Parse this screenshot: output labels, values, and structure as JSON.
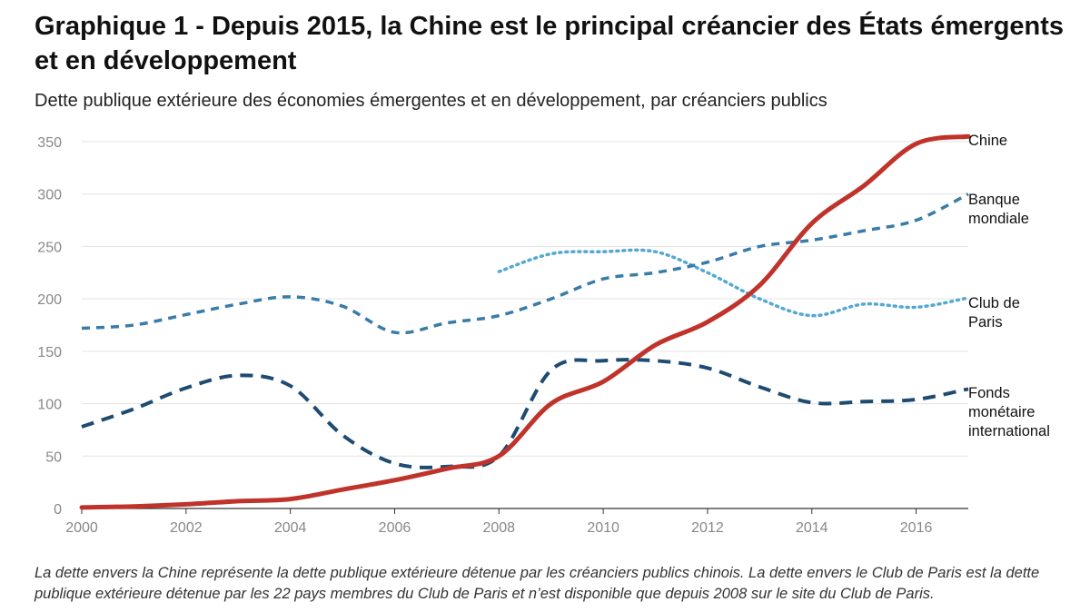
{
  "title": "Graphique 1 - Depuis 2015, la Chine est le principal créancier des États émergents et en développement",
  "subtitle": "Dette publique extérieure des économies émergentes et en développement, par créanciers publics",
  "note": "La dette envers la Chine représente la dette publique extérieure détenue par les créanciers publics chinois. La dette envers le Club de Paris est la dette publique extérieure détenue par les 22 pays membres du Club de Paris et n’est disponible que depuis 2008 sur le site du Club de Paris.",
  "chart_data": {
    "type": "line",
    "title": "Graphique 1 - Depuis 2015, la Chine est le principal créancier des États émergents et en développement",
    "subtitle": "Dette publique extérieure des économies émergentes et en développement, par créanciers publics",
    "xlabel": "",
    "ylabel": "",
    "xlim": [
      2000,
      2017
    ],
    "ylim": [
      0,
      350
    ],
    "x_ticks": [
      2000,
      2002,
      2004,
      2006,
      2008,
      2010,
      2012,
      2014,
      2016
    ],
    "y_ticks": [
      0,
      50,
      100,
      150,
      200,
      250,
      300,
      350
    ],
    "grid": "horizontal",
    "legend": "inline-right",
    "series": [
      {
        "name": "Chine",
        "label_lines": [
          "Chine"
        ],
        "color": "#c0332b",
        "style": "solid",
        "x": [
          2000,
          2001,
          2002,
          2003,
          2004,
          2005,
          2006,
          2007,
          2008,
          2009,
          2010,
          2011,
          2012,
          2013,
          2014,
          2015,
          2016,
          2017
        ],
        "values": [
          1,
          2,
          4,
          7,
          9,
          18,
          27,
          38,
          50,
          100,
          121,
          156,
          178,
          213,
          272,
          308,
          348,
          355
        ]
      },
      {
        "name": "Banque mondiale",
        "label_lines": [
          "Banque",
          "mondiale"
        ],
        "color": "#3a7ca8",
        "style": "dashed",
        "x": [
          2000,
          2001,
          2002,
          2003,
          2004,
          2005,
          2006,
          2007,
          2008,
          2009,
          2010,
          2011,
          2012,
          2013,
          2014,
          2015,
          2016,
          2017
        ],
        "values": [
          172,
          175,
          185,
          195,
          202,
          193,
          168,
          177,
          184,
          200,
          219,
          225,
          235,
          250,
          256,
          265,
          275,
          300
        ]
      },
      {
        "name": "Club de Paris",
        "label_lines": [
          "Club de",
          "Paris"
        ],
        "color": "#55a8d2",
        "style": "dotted",
        "x": [
          2008,
          2009,
          2010,
          2011,
          2012,
          2013,
          2014,
          2015,
          2016,
          2017
        ],
        "values": [
          226,
          243,
          245,
          245,
          225,
          200,
          184,
          195,
          192,
          201
        ]
      },
      {
        "name": "Fonds monétaire international",
        "label_lines": [
          "Fonds",
          "monétaire",
          "international"
        ],
        "color": "#1d4b72",
        "style": "longdash",
        "x": [
          2000,
          2001,
          2002,
          2003,
          2004,
          2005,
          2006,
          2007,
          2008,
          2009,
          2010,
          2011,
          2012,
          2013,
          2014,
          2015,
          2016,
          2017
        ],
        "values": [
          78,
          95,
          115,
          127,
          117,
          70,
          43,
          40,
          50,
          132,
          141,
          141,
          134,
          116,
          101,
          102,
          104,
          114
        ]
      }
    ]
  }
}
